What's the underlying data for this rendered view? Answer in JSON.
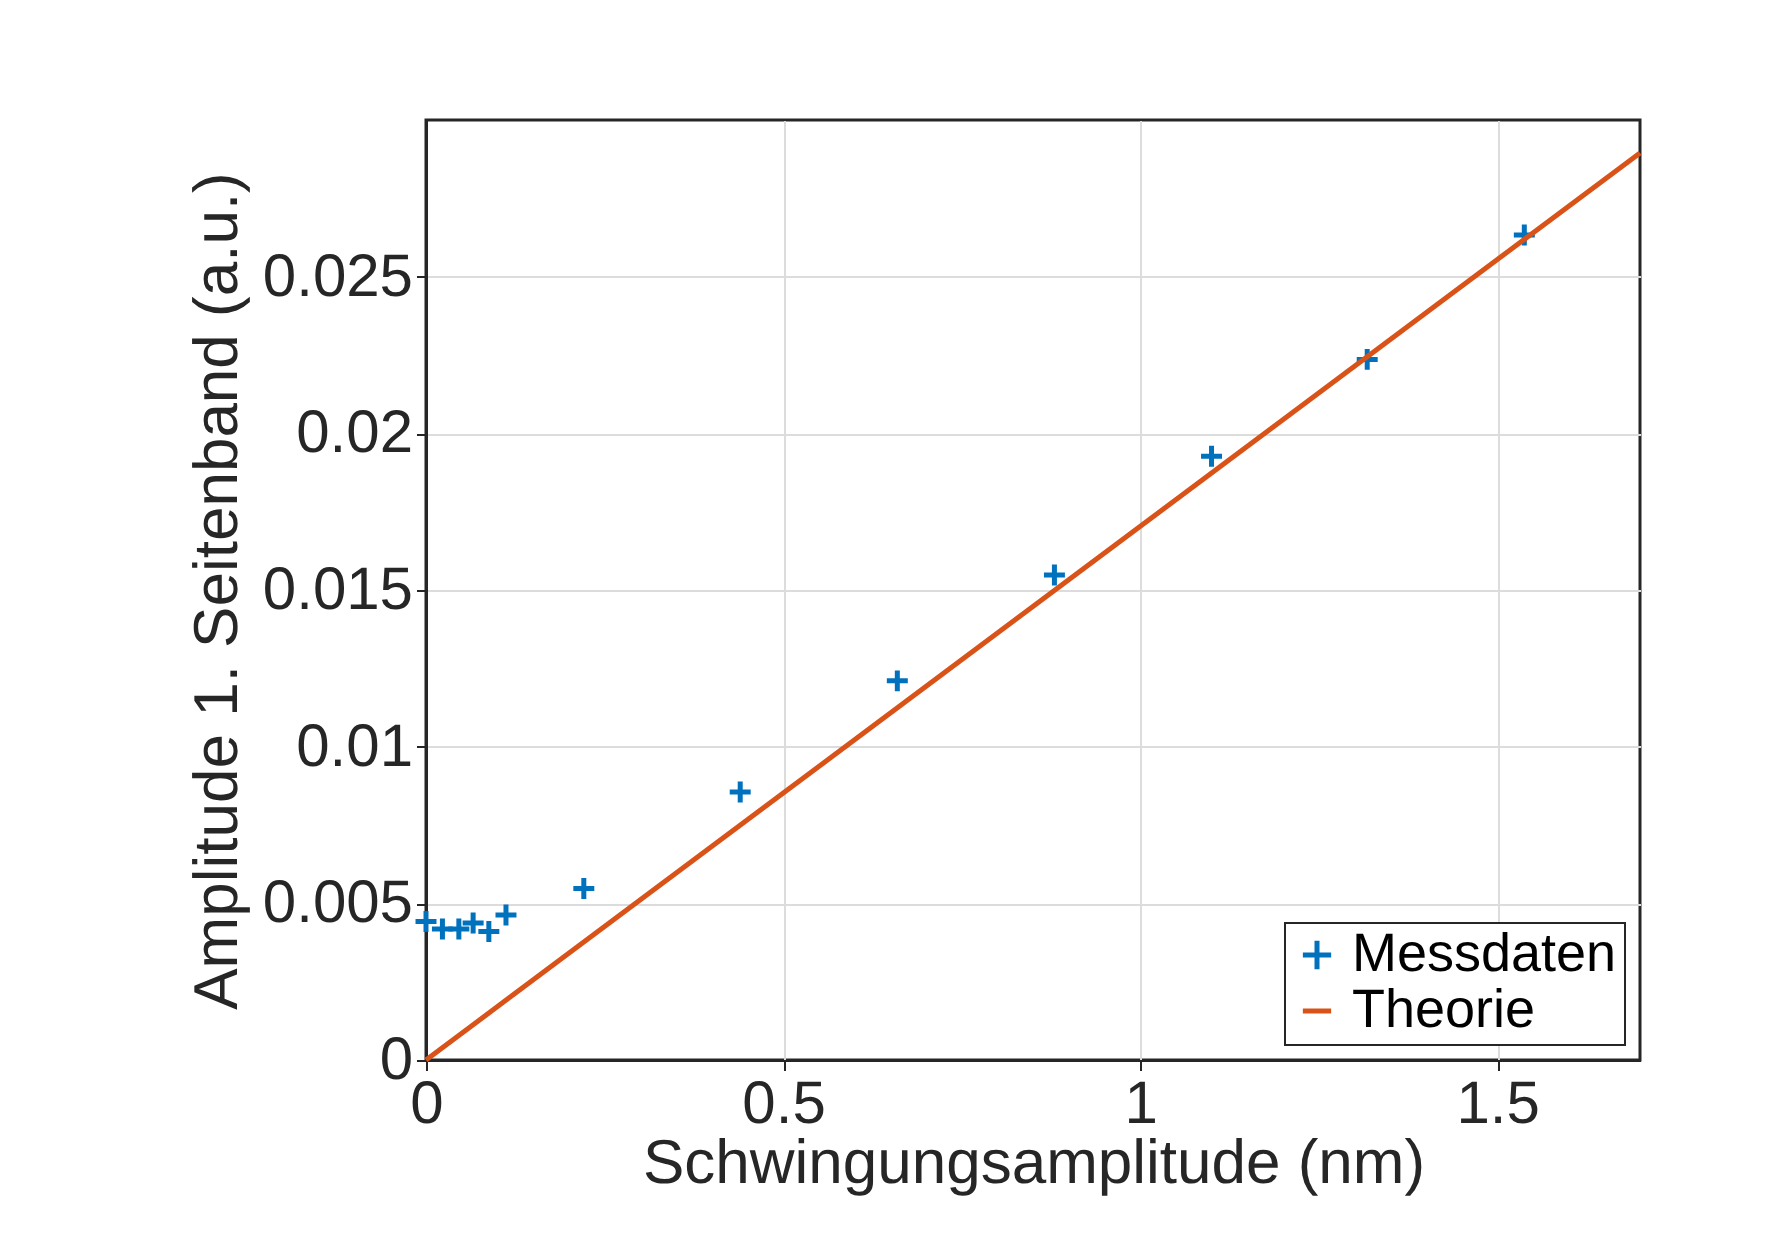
{
  "chart_data": {
    "type": "scatter",
    "xlabel": "Schwingungsamplitude (nm)",
    "ylabel": "Amplitude 1. Seitenband (a.u.)",
    "series": [
      {
        "name": "Messdaten",
        "color": "#0072bd",
        "marker": "cross",
        "x": [
          0,
          0.023,
          0.046,
          0.066,
          0.088,
          0.112,
          0.221,
          0.44,
          0.66,
          0.88,
          1.1,
          1.318,
          1.538
        ],
        "values": [
          0.00442,
          0.00418,
          0.00418,
          0.00437,
          0.0041,
          0.00463,
          0.00547,
          0.00855,
          0.0121,
          0.01548,
          0.01927,
          0.02236,
          0.02633
        ]
      },
      {
        "name": "Theorie",
        "type": "line",
        "color": "#d95319",
        "line_style": "solid",
        "marker": "none",
        "x": [
          0,
          1.7
        ],
        "values": [
          0,
          0.02895
        ]
      }
    ],
    "xlim": [
      0,
      1.7
    ],
    "xticks": [
      0,
      0.5,
      1,
      1.5
    ],
    "ylim": [
      0,
      0.03
    ],
    "yticks": [
      0,
      0.005,
      0.01,
      0.015,
      0.02,
      0.025
    ],
    "grid": true,
    "legend": "bottom right"
  }
}
